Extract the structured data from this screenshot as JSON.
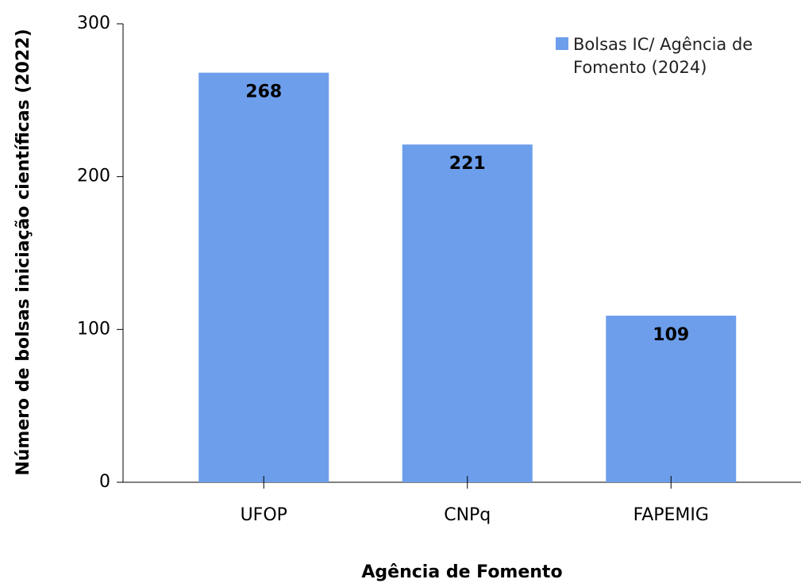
{
  "chart_data": {
    "type": "bar",
    "xlabel": "Agência de Fomento",
    "ylabel": "Número de bolsas iniciação científicas (2022)",
    "categories": [
      "UFOP",
      "CNPq",
      "FAPEMIG"
    ],
    "series": [
      {
        "name": "Bolsas IC/ Agência de Fomento (2024)",
        "color": "#6d9eeb",
        "values": [
          268,
          221,
          109
        ]
      }
    ],
    "ylim": [
      0,
      300
    ],
    "yticks": [
      0,
      100,
      200,
      300
    ],
    "legend": "top-right",
    "data_labels": true
  }
}
